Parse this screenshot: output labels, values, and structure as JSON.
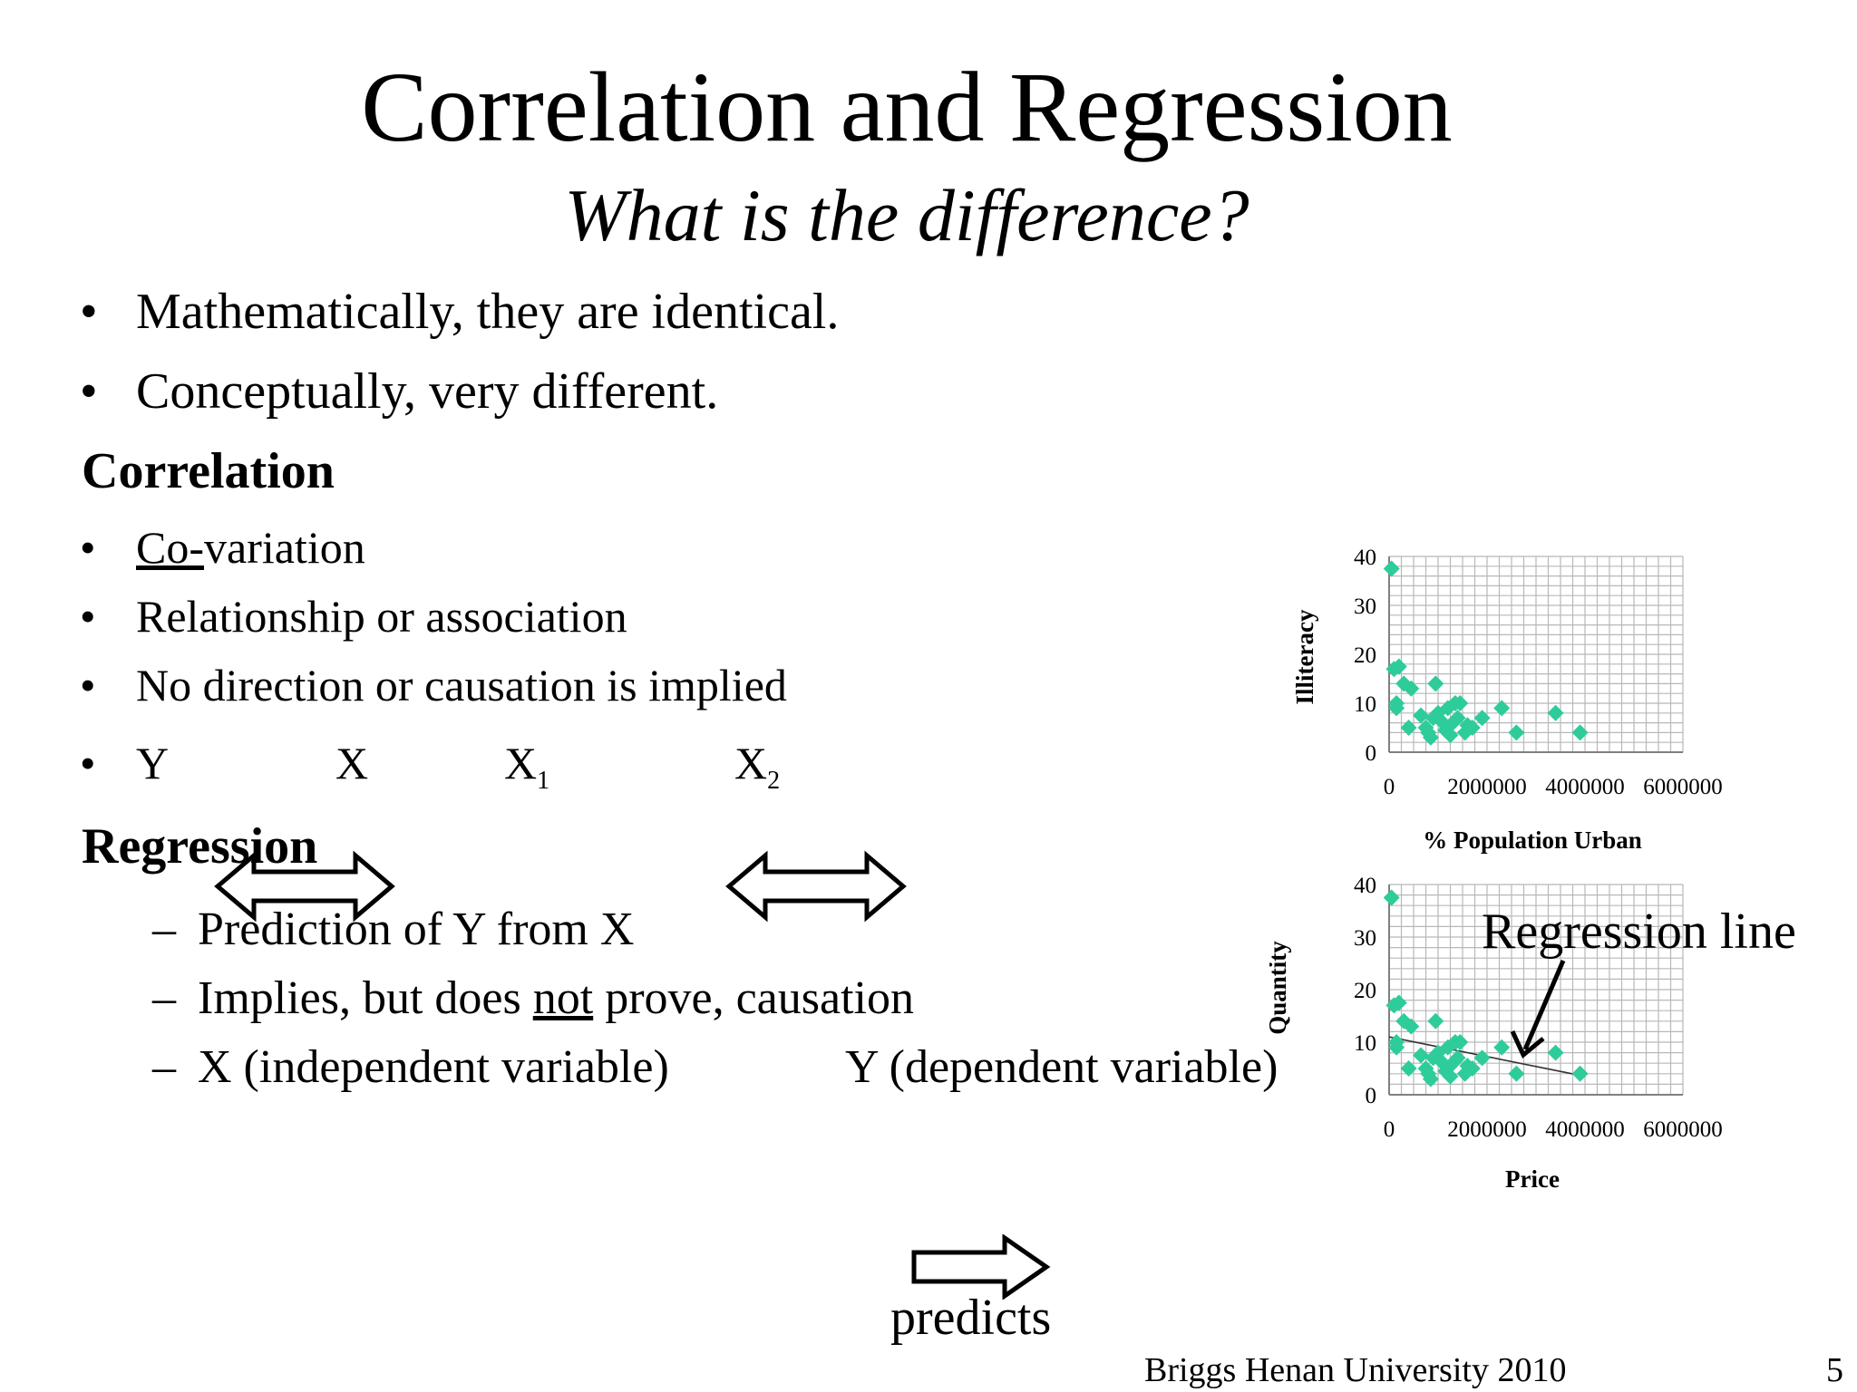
{
  "title": "Correlation and Regression",
  "subtitle": "What is the difference?",
  "intro_bullets": [
    "Mathematically, they are identical.",
    "Conceptually, very different."
  ],
  "correlation": {
    "heading": "Correlation",
    "bullet_1_underlined": "Co-",
    "bullet_1_rest": "variation",
    "bullet_2": "Relationship or association",
    "bullet_3": "No direction or causation is implied",
    "var_y": "Y",
    "var_x": "X",
    "var_x1": "X",
    "var_x1_sub": "1",
    "var_x2": "X",
    "var_x2_sub": "2"
  },
  "regression": {
    "heading": "Regression",
    "item_1": "Prediction of Y from X",
    "item_2_before": "Implies, but does ",
    "item_2_underlined": "not",
    "item_2_after": " prove, causation",
    "item_3_x": "X (independent variable)",
    "item_3_y": "Y (dependent variable)"
  },
  "arrow_label": "predicts",
  "regression_line_label": "Regression line",
  "footer": {
    "credit": "Briggs  Henan University 2010",
    "page_number": "5"
  },
  "marker_color": "#2ecc9a",
  "chart_data": [
    {
      "type": "scatter",
      "xlabel": "% Population Urban",
      "ylabel": "Illiteracy",
      "xlim": [
        0,
        6000000
      ],
      "ylim": [
        0,
        40
      ],
      "x_ticks": [
        "0",
        "2000000",
        "4000000",
        "6000000"
      ],
      "y_ticks": [
        "0",
        "10",
        "20",
        "30",
        "40"
      ],
      "grid": true,
      "points": [
        [
          50000,
          37.5
        ],
        [
          100000,
          17
        ],
        [
          200000,
          17.5
        ],
        [
          150000,
          10
        ],
        [
          150000,
          9
        ],
        [
          300000,
          14
        ],
        [
          450000,
          13
        ],
        [
          950000,
          14
        ],
        [
          400000,
          5
        ],
        [
          650000,
          7.5
        ],
        [
          800000,
          4
        ],
        [
          900000,
          7
        ],
        [
          1000000,
          8
        ],
        [
          1100000,
          6
        ],
        [
          1200000,
          9
        ],
        [
          1250000,
          3.5
        ],
        [
          1350000,
          10
        ],
        [
          1450000,
          10
        ],
        [
          1400000,
          7
        ],
        [
          1550000,
          4
        ],
        [
          1700000,
          5
        ],
        [
          1900000,
          7
        ],
        [
          2300000,
          9
        ],
        [
          2600000,
          4
        ],
        [
          3400000,
          8
        ],
        [
          3900000,
          4
        ],
        [
          750000,
          5
        ],
        [
          1150000,
          4.5
        ],
        [
          1600000,
          5.5
        ],
        [
          1300000,
          6
        ],
        [
          850000,
          3
        ]
      ]
    },
    {
      "type": "scatter",
      "xlabel": "Price",
      "ylabel": "Quantity",
      "xlim": [
        0,
        6000000
      ],
      "ylim": [
        0,
        40
      ],
      "x_ticks": [
        "0",
        "2000000",
        "4000000",
        "6000000"
      ],
      "y_ticks": [
        "0",
        "10",
        "20",
        "30",
        "40"
      ],
      "grid": true,
      "regression_line": [
        [
          0,
          11
        ],
        [
          4000000,
          3.5
        ]
      ],
      "points": [
        [
          50000,
          37.5
        ],
        [
          100000,
          17
        ],
        [
          200000,
          17.5
        ],
        [
          150000,
          10
        ],
        [
          150000,
          9
        ],
        [
          300000,
          14
        ],
        [
          450000,
          13
        ],
        [
          950000,
          14
        ],
        [
          400000,
          5
        ],
        [
          650000,
          7.5
        ],
        [
          800000,
          4
        ],
        [
          900000,
          7
        ],
        [
          1000000,
          8
        ],
        [
          1100000,
          6
        ],
        [
          1200000,
          9
        ],
        [
          1250000,
          3.5
        ],
        [
          1350000,
          10
        ],
        [
          1450000,
          10
        ],
        [
          1400000,
          7
        ],
        [
          1550000,
          4
        ],
        [
          1700000,
          5
        ],
        [
          1900000,
          7
        ],
        [
          2300000,
          9
        ],
        [
          2600000,
          4
        ],
        [
          3400000,
          8
        ],
        [
          3900000,
          4
        ],
        [
          750000,
          5
        ],
        [
          1150000,
          4.5
        ],
        [
          1600000,
          5.5
        ],
        [
          1300000,
          6
        ],
        [
          850000,
          3
        ]
      ]
    }
  ]
}
